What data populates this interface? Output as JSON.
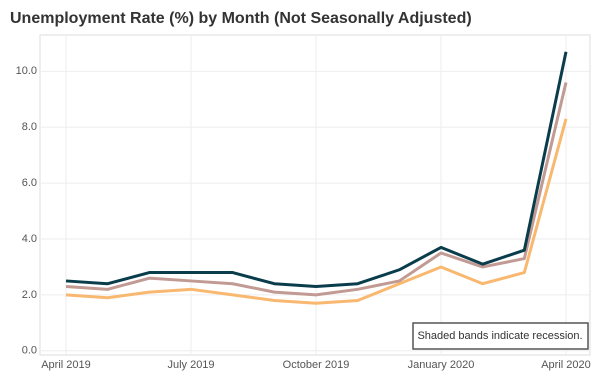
{
  "chart_data": {
    "type": "line",
    "title": "Unemployment Rate (%) by Month (Not Seasonally Adjusted)",
    "categories": [
      "April 2019",
      null,
      null,
      "July 2019",
      null,
      null,
      "October 2019",
      null,
      null,
      "January 2020",
      null,
      null,
      "April 2020"
    ],
    "series": [
      {
        "color": "#f9b870",
        "values": [
          2.0,
          1.9,
          2.1,
          2.2,
          2.0,
          1.8,
          1.7,
          1.8,
          2.4,
          3.0,
          2.4,
          2.8,
          8.3
        ]
      },
      {
        "color": "#c29a94",
        "values": [
          2.3,
          2.2,
          2.6,
          2.5,
          2.4,
          2.1,
          2.0,
          2.2,
          2.5,
          3.5,
          3.0,
          3.3,
          9.6
        ]
      },
      {
        "color": "#0a3d4c",
        "values": [
          2.5,
          2.4,
          2.8,
          2.8,
          2.8,
          2.4,
          2.3,
          2.4,
          2.9,
          3.7,
          3.1,
          3.6,
          10.7
        ]
      }
    ],
    "ylim": [
      -0.15,
      11.3
    ],
    "yticks": [
      {
        "value": 0,
        "label": "0.0"
      },
      {
        "value": 2,
        "label": "2.0"
      },
      {
        "value": 4,
        "label": "4.0"
      },
      {
        "value": 6,
        "label": "6.0"
      },
      {
        "value": 8,
        "label": "8.0"
      },
      {
        "value": 10,
        "label": "10.0"
      }
    ],
    "grid": true,
    "annotation": "Shaded bands indicate recession."
  }
}
